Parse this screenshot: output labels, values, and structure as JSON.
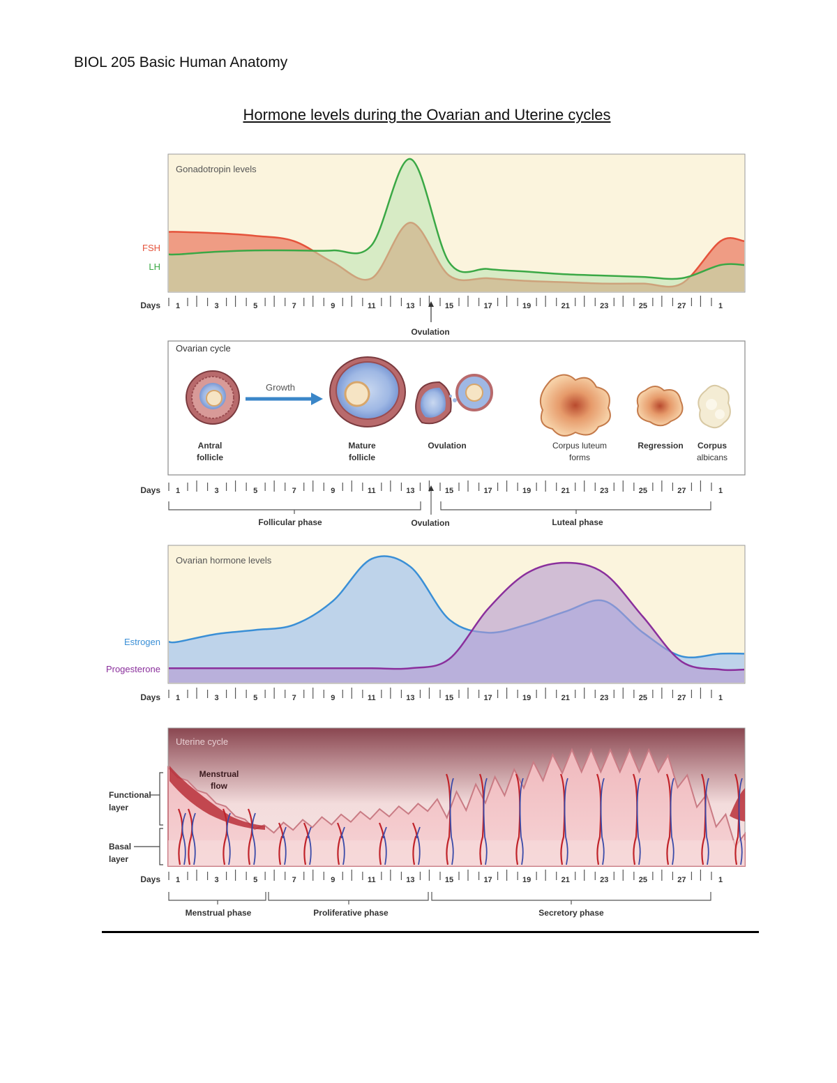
{
  "header": {
    "course": "BIOL 205 Basic Human Anatomy",
    "title": "Hormone levels during the Ovarian and Uterine cycles"
  },
  "days_label": "Days",
  "day_ticks": [
    "1",
    "3",
    "5",
    "7",
    "9",
    "11",
    "13",
    "15",
    "17",
    "19",
    "21",
    "23",
    "25",
    "27",
    "1"
  ],
  "colors": {
    "fsh": "#e5533b",
    "lh": "#3aa845",
    "estrogen": "#3a8fd6",
    "progesterone": "#8a2f9c",
    "panel_bg": "#fbf4dd",
    "uterine_bg": "#7a3a44",
    "growth_arrow": "#3a86c8"
  },
  "gonadotropin": {
    "title": "Gonadotropin levels",
    "fsh_label": "FSH",
    "lh_label": "LH",
    "ovulation_label": "Ovulation"
  },
  "ovarian_cycle": {
    "title": "Ovarian cycle",
    "growth_label": "Growth",
    "stages": [
      {
        "line1": "Antral",
        "line2": "follicle"
      },
      {
        "line1": "Mature",
        "line2": "follicle"
      },
      {
        "line1": "Ovulation",
        "line2": ""
      },
      {
        "line1": "Corpus luteum",
        "line2": "forms"
      },
      {
        "line1": "Regression",
        "line2": ""
      },
      {
        "line1": "Corpus",
        "line2": "albicans"
      }
    ],
    "phases": {
      "follicular": "Follicular phase",
      "ovulation": "Ovulation",
      "luteal": "Luteal phase"
    }
  },
  "ovarian_hormones": {
    "title": "Ovarian hormone levels",
    "estrogen_label": "Estrogen",
    "progesterone_label": "Progesterone"
  },
  "uterine_cycle": {
    "title": "Uterine cycle",
    "menstrual_flow_line1": "Menstrual",
    "menstrual_flow_line2": "flow",
    "functional_line1": "Functional",
    "functional_line2": "layer",
    "basal_line1": "Basal",
    "basal_line2": "layer",
    "phases": {
      "menstrual": "Menstrual phase",
      "proliferative": "Proliferative phase",
      "secretory": "Secretory phase"
    }
  },
  "chart_data": [
    {
      "type": "line",
      "title": "Gonadotropin levels",
      "xlabel": "Days",
      "x": [
        1,
        3,
        5,
        7,
        9,
        11,
        13,
        15,
        17,
        19,
        21,
        23,
        25,
        27,
        29
      ],
      "x_tick_labels": [
        "1",
        "3",
        "5",
        "7",
        "9",
        "11",
        "13",
        "15",
        "17",
        "19",
        "21",
        "23",
        "25",
        "27",
        "1"
      ],
      "series": [
        {
          "name": "FSH",
          "values": [
            0.45,
            0.44,
            0.42,
            0.38,
            0.22,
            0.1,
            0.52,
            0.12,
            0.1,
            0.08,
            0.07,
            0.06,
            0.06,
            0.06,
            0.38
          ]
        },
        {
          "name": "LH",
          "values": [
            0.28,
            0.3,
            0.31,
            0.31,
            0.31,
            0.35,
            1.0,
            0.22,
            0.17,
            0.15,
            0.13,
            0.12,
            0.11,
            0.1,
            0.2
          ]
        }
      ],
      "grid": false
    },
    {
      "type": "area",
      "title": "Ovarian hormone levels",
      "xlabel": "Days",
      "x": [
        1,
        3,
        5,
        7,
        9,
        11,
        13,
        15,
        17,
        19,
        21,
        23,
        25,
        27,
        29
      ],
      "x_tick_labels": [
        "1",
        "3",
        "5",
        "7",
        "9",
        "11",
        "13",
        "15",
        "17",
        "19",
        "21",
        "23",
        "25",
        "27",
        "1"
      ],
      "series": [
        {
          "name": "Estrogen",
          "values": [
            0.31,
            0.37,
            0.4,
            0.44,
            0.62,
            0.94,
            0.88,
            0.48,
            0.38,
            0.44,
            0.54,
            0.62,
            0.38,
            0.2,
            0.22
          ]
        },
        {
          "name": "Progesterone",
          "values": [
            0.11,
            0.11,
            0.11,
            0.11,
            0.11,
            0.11,
            0.11,
            0.18,
            0.56,
            0.83,
            0.91,
            0.83,
            0.5,
            0.16,
            0.1
          ]
        }
      ],
      "grid": false
    }
  ]
}
